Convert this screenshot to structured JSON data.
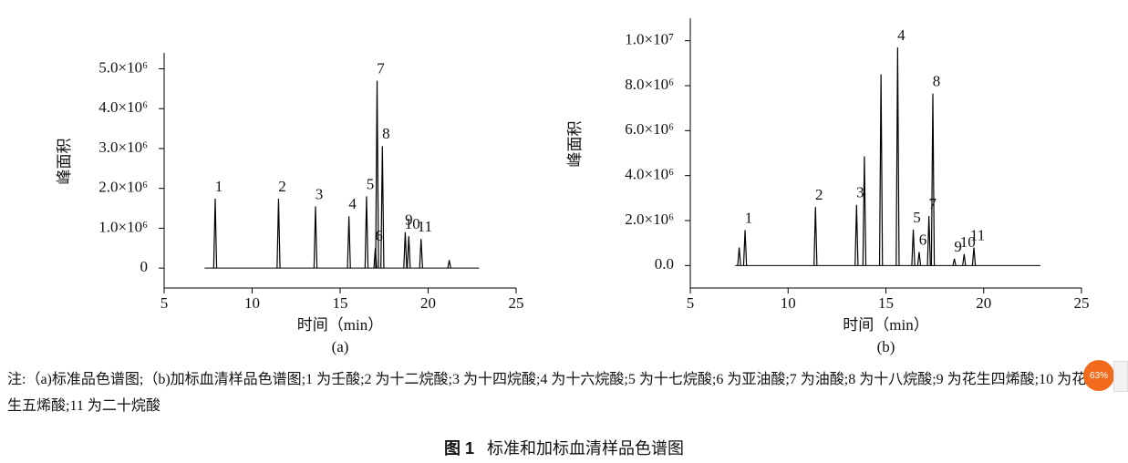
{
  "chart_data": [
    {
      "type": "chromatogram",
      "panel": "(a)",
      "ylabel": "峰面积",
      "xlabel": "时间（min）",
      "color": "#000000",
      "xlim": [
        5,
        25
      ],
      "xticks": [
        5,
        10,
        15,
        20,
        25
      ],
      "ylim": [
        -500000,
        5400000
      ],
      "yticks": [
        0,
        {
          "value": 1000000,
          "label": "1.0×10⁶"
        },
        {
          "value": 2000000,
          "label": "2.0×10⁶"
        },
        {
          "value": 3000000,
          "label": "3.0×10⁶"
        },
        {
          "value": 4000000,
          "label": "4.0×10⁶"
        },
        {
          "value": 5000000,
          "label": "5.0×10⁶"
        }
      ],
      "trace_xlim": [
        7.3,
        22.9
      ],
      "peaks": {
        "x": [
          7.9,
          11.5,
          13.6,
          15.5,
          16.5,
          17.0,
          17.1,
          17.4,
          18.7,
          18.9,
          19.6,
          21.2
        ],
        "values": [
          1740000,
          1740000,
          1550000,
          1300000,
          1800000,
          500000,
          4700000,
          3060000,
          900000,
          800000,
          730000,
          200000
        ],
        "labels": [
          "1",
          "2",
          "3",
          "4",
          "5",
          "6",
          "7",
          "8",
          "9",
          "10",
          "11",
          null
        ]
      }
    },
    {
      "type": "chromatogram",
      "panel": "(b)",
      "ylabel": "峰面积",
      "xlabel": "时间（min）",
      "color": "#000000",
      "xlim": [
        5,
        25
      ],
      "xticks": [
        5,
        10,
        15,
        20,
        25
      ],
      "ylim": [
        -1000000,
        11000000
      ],
      "yticks": [
        {
          "value": 0,
          "label": "0.0"
        },
        {
          "value": 2000000,
          "label": "2.0×10⁶"
        },
        {
          "value": 4000000,
          "label": "4.0×10⁶"
        },
        {
          "value": 6000000,
          "label": "6.0×10⁶"
        },
        {
          "value": 8000000,
          "label": "8.0×10⁶"
        },
        {
          "value": 10000000,
          "label": "1.0×10⁷"
        }
      ],
      "trace_xlim": [
        7.3,
        22.9
      ],
      "peaks": {
        "x": [
          7.5,
          7.8,
          11.4,
          13.5,
          13.9,
          14.75,
          15.6,
          16.4,
          16.7,
          17.2,
          17.4,
          18.5,
          19.0,
          19.5
        ],
        "values": [
          800000,
          1580000,
          2600000,
          2700000,
          4860000,
          8500000,
          9700000,
          1600000,
          600000,
          2200000,
          7650000,
          300000,
          500000,
          800000
        ],
        "labels": [
          null,
          "1",
          "2",
          "3",
          null,
          null,
          "4",
          "5",
          "6",
          "7",
          "8",
          "9",
          "10",
          "11"
        ]
      }
    }
  ],
  "note": "注:（a)标准品色谱图;（b)加标血清样品色谱图;1 为壬酸;2 为十二烷酸;3 为十四烷酸;4 为十六烷酸;5 为十七烷酸;6 为亚油酸;7 为油酸;8 为十八烷酸;9 为花生四烯酸;10 为花生五烯酸;11 为二十烷酸",
  "caption": {
    "number": "图 1",
    "title": "标准和加标血清样品色谱图"
  },
  "widget": {
    "percent": "63%"
  }
}
